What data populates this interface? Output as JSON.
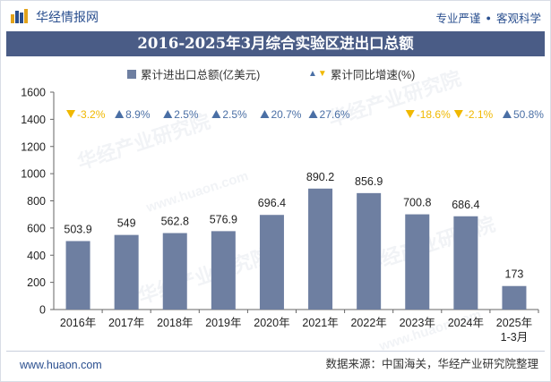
{
  "header": {
    "brand": "华经情报网",
    "tag1": "专业严谨",
    "tag2": "客观科学",
    "tag_separator": "●"
  },
  "title": "2016-2025年3月综合实验区进出口总额",
  "legend": {
    "bar_label": "累计进出口总额(亿美元)",
    "growth_label": "累计同比增速(%)"
  },
  "watermark": "华经产业研究院",
  "watermark_url": "www.huaon.com",
  "footer": {
    "website": "www.huaon.com",
    "source": "数据来源：中国海关，华经产业研究院整理"
  },
  "colors": {
    "bar": "#6e7fa1",
    "up": "#4a6fa5",
    "down": "#f0b800",
    "title_bg": "#4a5c86"
  },
  "chart_data": {
    "type": "bar",
    "categories": [
      "2016年",
      "2017年",
      "2018年",
      "2019年",
      "2020年",
      "2021年",
      "2022年",
      "2023年",
      "2024年",
      "2025年 1-3月"
    ],
    "category_lines": [
      [
        "2016年"
      ],
      [
        "2017年"
      ],
      [
        "2018年"
      ],
      [
        "2019年"
      ],
      [
        "2020年"
      ],
      [
        "2021年"
      ],
      [
        "2022年"
      ],
      [
        "2023年"
      ],
      [
        "2024年"
      ],
      [
        "2025年",
        "1-3月"
      ]
    ],
    "series": [
      {
        "name": "累计进出口总额(亿美元)",
        "values": [
          503.9,
          549,
          562.8,
          576.9,
          696.4,
          890.2,
          856.9,
          700.8,
          686.4,
          173
        ],
        "labels": [
          "503.9",
          "549",
          "562.8",
          "576.9",
          "696.4",
          "890.2",
          "856.9",
          "700.8",
          "686.4",
          "173"
        ]
      },
      {
        "name": "累计同比增速(%)",
        "values": [
          -3.2,
          8.9,
          2.5,
          2.5,
          20.7,
          27.6,
          null,
          -18.6,
          -2.1,
          50.8
        ],
        "labels": [
          "-3.2%",
          "8.9%",
          "2.5%",
          "2.5%",
          "20.7%",
          "27.6%",
          "",
          "-18.6%",
          "-2.1%",
          "50.8%"
        ]
      }
    ],
    "yticks": [
      "0",
      "200",
      "400",
      "600",
      "800",
      "1000",
      "1200",
      "1400",
      "1600"
    ],
    "ylim": [
      0,
      1600
    ],
    "grid": false
  }
}
